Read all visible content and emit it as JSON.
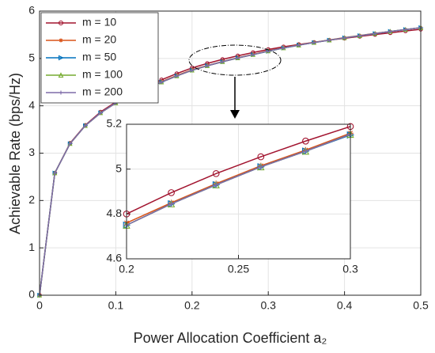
{
  "chart_data": [
    {
      "type": "line",
      "x_label": "Power Allocation Coefficient a₂",
      "y_label": "Achievable Rate (bps/Hz)",
      "x": [
        0,
        0.02,
        0.04,
        0.06,
        0.08,
        0.1,
        0.12,
        0.14,
        0.16,
        0.18,
        0.2,
        0.22,
        0.24,
        0.26,
        0.28,
        0.3,
        0.32,
        0.34,
        0.36,
        0.38,
        0.4,
        0.42,
        0.44,
        0.46,
        0.48,
        0.5
      ],
      "xlim": [
        0,
        0.5
      ],
      "xticks": [
        0,
        0.1,
        0.2,
        0.3,
        0.4,
        0.5
      ],
      "ylim": [
        0,
        6
      ],
      "yticks": [
        0,
        1,
        2,
        3,
        4,
        5,
        6
      ],
      "grid": true,
      "legend": "upper left",
      "series": [
        {
          "name": "m = 10",
          "color": "#a2142f",
          "marker": "o",
          "values": [
            0,
            2.58,
            3.21,
            3.59,
            3.87,
            4.08,
            4.25,
            4.41,
            4.55,
            4.68,
            4.8,
            4.895,
            4.98,
            5.055,
            5.125,
            5.19,
            5.245,
            5.295,
            5.34,
            5.385,
            5.425,
            5.465,
            5.505,
            5.54,
            5.58,
            5.615
          ]
        },
        {
          "name": "m = 20",
          "color": "#d95319",
          "marker": "*",
          "values": [
            0,
            2.58,
            3.2,
            3.58,
            3.85,
            4.06,
            4.23,
            4.38,
            4.51,
            4.64,
            4.76,
            4.85,
            4.935,
            5.015,
            5.085,
            5.16,
            5.225,
            5.285,
            5.34,
            5.39,
            5.44,
            5.485,
            5.53,
            5.57,
            5.61,
            5.65
          ]
        },
        {
          "name": "m = 50",
          "color": "#0072bd",
          "marker": ">",
          "values": [
            0,
            2.58,
            3.2,
            3.58,
            3.85,
            4.06,
            4.22,
            4.37,
            4.5,
            4.63,
            4.75,
            4.845,
            4.93,
            5.01,
            5.08,
            5.152,
            5.22,
            5.28,
            5.335,
            5.385,
            5.435,
            5.48,
            5.525,
            5.57,
            5.61,
            5.65
          ]
        },
        {
          "name": "m = 100",
          "color": "#77ac30",
          "marker": "^",
          "values": [
            0,
            2.58,
            3.2,
            3.58,
            3.85,
            4.06,
            4.22,
            4.37,
            4.5,
            4.63,
            4.75,
            4.845,
            4.93,
            5.01,
            5.08,
            5.155,
            5.22,
            5.28,
            5.335,
            5.385,
            5.435,
            5.48,
            5.525,
            5.57,
            5.61,
            5.65
          ]
        },
        {
          "name": "m = 200",
          "color": "#7e6ba8",
          "marker": "+",
          "values": [
            0,
            2.58,
            3.2,
            3.58,
            3.85,
            4.06,
            4.22,
            4.37,
            4.5,
            4.63,
            4.75,
            4.845,
            4.93,
            5.01,
            5.08,
            5.155,
            5.22,
            5.28,
            5.335,
            5.385,
            5.435,
            5.48,
            5.525,
            5.57,
            5.61,
            5.65
          ]
        }
      ]
    },
    {
      "type": "line",
      "x": [
        0.2,
        0.22,
        0.24,
        0.26,
        0.28,
        0.3
      ],
      "xlim": [
        0.2,
        0.3
      ],
      "xticks": [
        0.2,
        0.25,
        0.3
      ],
      "ylim": [
        4.6,
        5.2
      ],
      "yticks": [
        4.6,
        4.8,
        5,
        5.2
      ],
      "grid": true,
      "series": [
        {
          "color": "#a2142f",
          "marker": "o",
          "values": [
            4.8,
            4.895,
            4.98,
            5.055,
            5.125,
            5.19
          ]
        },
        {
          "color": "#d95319",
          "marker": "*",
          "values": [
            4.76,
            4.85,
            4.935,
            5.015,
            5.085,
            5.16
          ]
        },
        {
          "color": "#0072bd",
          "marker": ">",
          "values": [
            4.75,
            4.845,
            4.93,
            5.01,
            5.08,
            5.152
          ]
        },
        {
          "color": "#77ac30",
          "marker": "^",
          "values": [
            4.75,
            4.845,
            4.93,
            5.01,
            5.08,
            5.155
          ]
        },
        {
          "color": "#7e6ba8",
          "marker": "+",
          "values": [
            4.75,
            4.845,
            4.93,
            5.01,
            5.08,
            5.155
          ]
        }
      ]
    }
  ]
}
